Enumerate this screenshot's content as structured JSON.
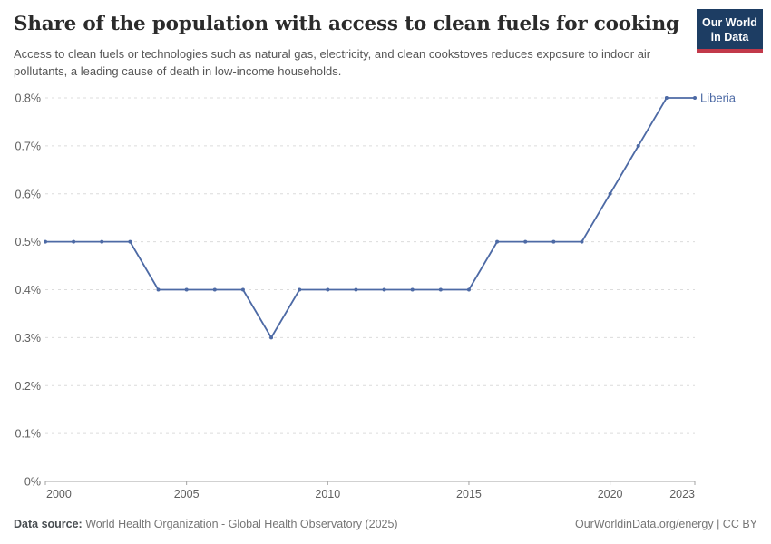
{
  "header": {
    "logo": {
      "line1": "Our World",
      "line2": "in Data",
      "bg_color": "#1d3d63",
      "stripe_color": "#c2394a",
      "text_color": "#ffffff"
    }
  },
  "chart_data": {
    "type": "line",
    "title": "Share of the population with access to clean fuels for cooking",
    "subtitle": "Access to clean fuels or technologies such as natural gas, electricity, and clean cookstoves reduces exposure to indoor air pollutants, a leading cause of death in low-income households.",
    "x": [
      2000,
      2001,
      2002,
      2003,
      2004,
      2005,
      2006,
      2007,
      2008,
      2009,
      2010,
      2011,
      2012,
      2013,
      2014,
      2015,
      2016,
      2017,
      2018,
      2019,
      2020,
      2021,
      2022,
      2023
    ],
    "series": [
      {
        "name": "Liberia",
        "color": "#4d6aa5",
        "values": [
          0.5,
          0.5,
          0.5,
          0.5,
          0.4,
          0.4,
          0.4,
          0.4,
          0.3,
          0.4,
          0.4,
          0.4,
          0.4,
          0.4,
          0.4,
          0.4,
          0.5,
          0.5,
          0.5,
          0.5,
          0.6,
          0.7,
          0.8,
          0.8
        ]
      }
    ],
    "xlim": [
      2000,
      2023
    ],
    "ylim": [
      0,
      0.8
    ],
    "x_ticks": [
      {
        "value": 2000,
        "label": "2000"
      },
      {
        "value": 2005,
        "label": "2005"
      },
      {
        "value": 2010,
        "label": "2010"
      },
      {
        "value": 2015,
        "label": "2015"
      },
      {
        "value": 2020,
        "label": "2020"
      },
      {
        "value": 2023,
        "label": "2023"
      }
    ],
    "y_ticks": [
      {
        "value": 0,
        "label": "0%"
      },
      {
        "value": 0.1,
        "label": "0.1%"
      },
      {
        "value": 0.2,
        "label": "0.2%"
      },
      {
        "value": 0.3,
        "label": "0.3%"
      },
      {
        "value": 0.4,
        "label": "0.4%"
      },
      {
        "value": 0.5,
        "label": "0.5%"
      },
      {
        "value": 0.6,
        "label": "0.6%"
      },
      {
        "value": 0.7,
        "label": "0.7%"
      },
      {
        "value": 0.8,
        "label": "0.8%"
      }
    ],
    "grid": true,
    "legend_position": "end-of-line",
    "grid_color": "#dcdcdc",
    "axis_color": "#a3a3a3",
    "tick_label_color": "#5f5f5f"
  },
  "footer": {
    "source_label": "Data source:",
    "source_text": "World Health Organization - Global Health Observatory (2025)",
    "right_text": "OurWorldinData.org/energy | CC BY"
  }
}
